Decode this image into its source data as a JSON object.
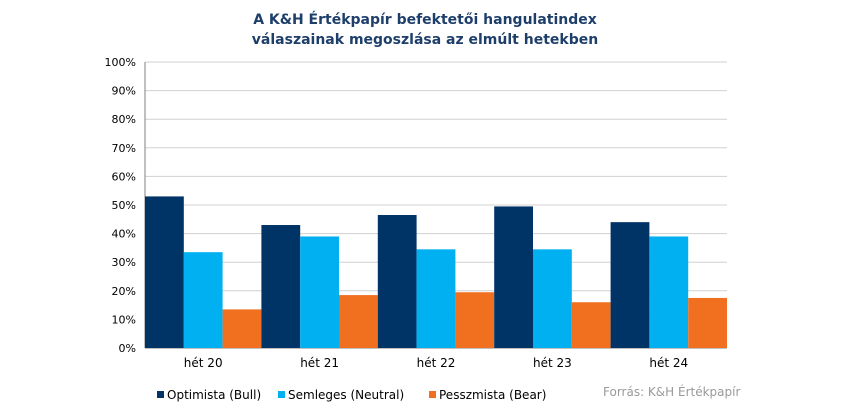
{
  "chart_data": {
    "type": "bar",
    "title_line1": "A K&H Értékpapír befektetői hangulatindex",
    "title_line2": "válaszainak megoszlása az elmúlt hetekben",
    "categories": [
      "hét 20",
      "hét 21",
      "hét 22",
      "hét 23",
      "hét 24"
    ],
    "series": [
      {
        "name": "Optimista (Bull)",
        "color": "#003366",
        "values": [
          53,
          43,
          46.5,
          49.5,
          44
        ]
      },
      {
        "name": "Semleges (Neutral)",
        "color": "#00b0f0",
        "values": [
          33.5,
          39,
          34.5,
          34.5,
          39
        ]
      },
      {
        "name": "Pesszmista (Bear)",
        "color": "#f07020",
        "values": [
          13.5,
          18.5,
          19.5,
          16,
          17.5
        ]
      }
    ],
    "ylim": [
      0,
      100
    ],
    "yticks": [
      "0%",
      "10%",
      "20%",
      "30%",
      "40%",
      "50%",
      "60%",
      "70%",
      "80%",
      "90%",
      "100%"
    ],
    "grid": true,
    "legend": "bottom",
    "source": "Forrás: K&H Értékpapír"
  }
}
